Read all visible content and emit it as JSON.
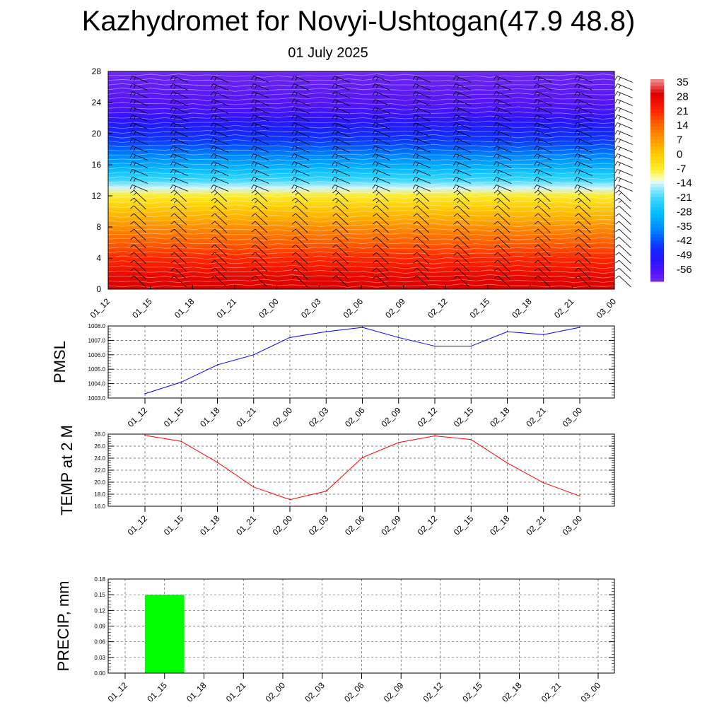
{
  "title": "Kazhydromet for Novyi-Ushtogan(47.9 48.8)",
  "subtitle": "01 July 2025",
  "chart_data": [
    {
      "type": "heatmap",
      "y_ticks": [
        0,
        4,
        8,
        12,
        16,
        20,
        24,
        28
      ],
      "ylim": [
        0,
        28
      ],
      "x_tick_labels": [
        "01_12",
        "01_15",
        "01_18",
        "01_21",
        "02_00",
        "02_03",
        "02_06",
        "02_09",
        "02_12",
        "02_15",
        "02_18",
        "02_21",
        "03_00"
      ],
      "colorbar_labels": [
        "35",
        "28",
        "21",
        "14",
        "7",
        "0",
        "-7",
        "-14",
        "-21",
        "-28",
        "-35",
        "-42",
        "-49",
        "-56"
      ],
      "temperature_profile": [
        [
          0,
          28
        ],
        [
          1,
          27
        ],
        [
          2,
          25
        ],
        [
          3,
          22
        ],
        [
          4,
          20
        ],
        [
          5,
          17
        ],
        [
          6,
          14
        ],
        [
          7,
          11
        ],
        [
          8,
          8
        ],
        [
          9,
          4
        ],
        [
          10,
          1
        ],
        [
          11,
          -3
        ],
        [
          12,
          -7
        ],
        [
          13,
          -14
        ],
        [
          14,
          -21
        ],
        [
          15,
          -26
        ],
        [
          16,
          -31
        ],
        [
          17,
          -35
        ],
        [
          18,
          -39
        ],
        [
          19,
          -43
        ],
        [
          20,
          -45
        ],
        [
          21,
          -48
        ],
        [
          22,
          -51
        ],
        [
          23,
          -54
        ],
        [
          24,
          -56
        ],
        [
          25,
          -57
        ],
        [
          26,
          -58
        ],
        [
          27,
          -59
        ],
        [
          28,
          -60
        ]
      ]
    },
    {
      "type": "line",
      "ylabel": "PMSL",
      "categories": [
        "01_12",
        "01_15",
        "01_18",
        "01_21",
        "02_00",
        "02_03",
        "02_06",
        "02_09",
        "02_12",
        "02_15",
        "02_18",
        "02_21",
        "03_00"
      ],
      "values": [
        1003.3,
        1004.1,
        1005.3,
        1006.0,
        1007.2,
        1007.6,
        1007.9,
        1007.2,
        1006.6,
        1006.6,
        1007.6,
        1007.4,
        1007.9
      ],
      "ylim": [
        1003.0,
        1008.0
      ],
      "y_ticks": [
        "1003.0",
        "1004.0",
        "1005.0",
        "1006.0",
        "1007.0",
        "1008.0"
      ],
      "color": "#0000ff",
      "grid": true
    },
    {
      "type": "line",
      "ylabel": "TEMP at 2 M",
      "categories": [
        "01_12",
        "01_15",
        "01_18",
        "01_21",
        "02_00",
        "02_03",
        "02_06",
        "02_09",
        "02_12",
        "02_15",
        "02_18",
        "02_21",
        "03_00"
      ],
      "values": [
        27.8,
        26.8,
        23.3,
        19.2,
        17.1,
        18.5,
        24.1,
        26.6,
        27.7,
        27.1,
        23.2,
        19.9,
        17.7
      ],
      "ylim": [
        16.0,
        28.0
      ],
      "y_ticks": [
        "16.0",
        "18.0",
        "20.0",
        "22.0",
        "24.0",
        "26.0",
        "28.0"
      ],
      "color": "#ff0000",
      "grid": true
    },
    {
      "type": "bar",
      "ylabel": "PRECIP, mm",
      "categories": [
        "01_12",
        "01_15",
        "01_18",
        "01_21",
        "02_00",
        "02_03",
        "02_06",
        "02_09",
        "02_12",
        "02_15",
        "02_18",
        "02_21",
        "03_00"
      ],
      "values": [
        0,
        0.15,
        0,
        0,
        0,
        0,
        0,
        0,
        0,
        0,
        0,
        0,
        0
      ],
      "ylim": [
        0,
        0.18
      ],
      "y_ticks": [
        "0.00",
        "0.03",
        "0.06",
        "0.09",
        "0.12",
        "0.15",
        "0.18"
      ],
      "color": "#00ff00",
      "grid": true
    }
  ]
}
